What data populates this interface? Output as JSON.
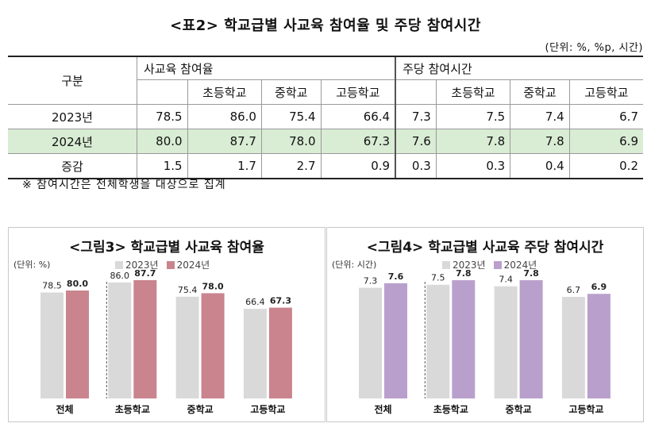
{
  "table": {
    "title": "<표2> 학교급별 사교육 참여율 및 주당 참여시간",
    "unit": "(단위: %, %p, 시간)",
    "gubun": "구분",
    "group_rate": "사교육 참여율",
    "group_hours": "주당 참여시간",
    "sublevels": [
      "초등학교",
      "중학교",
      "고등학교"
    ],
    "rows": [
      {
        "label": "2023년",
        "values": [
          "78.5",
          "86.0",
          "75.4",
          "66.4",
          "7.3",
          "7.5",
          "7.4",
          "6.7"
        ]
      },
      {
        "label": "2024년",
        "values": [
          "80.0",
          "87.7",
          "78.0",
          "67.3",
          "7.6",
          "7.8",
          "7.8",
          "6.9"
        ]
      },
      {
        "label": "증감",
        "values": [
          "1.5",
          "1.7",
          "2.7",
          "0.9",
          "0.3",
          "0.3",
          "0.4",
          "0.2"
        ]
      }
    ],
    "note": "※ 참여시간은 전체학생을 대상으로 집계"
  },
  "colors": {
    "bar2023": "#d9d9d9",
    "bar2024_rate": "#c9848e",
    "bar2024_hours": "#b9a0cc",
    "highlight_row": "#d9ecd4",
    "divider": "#9a9a9a"
  },
  "chart_data": [
    {
      "type": "bar",
      "title": "<그림3> 학교급별 사교육 참여율",
      "unit": "(단위: %)",
      "categories": [
        "전체",
        "초등학교",
        "중학교",
        "고등학교"
      ],
      "series": [
        {
          "name": "2023년",
          "values": [
            78.5,
            86.0,
            75.4,
            66.4
          ]
        },
        {
          "name": "2024년",
          "values": [
            80.0,
            87.7,
            78.0,
            67.3
          ]
        }
      ],
      "ylim": [
        0,
        100
      ],
      "grid": false,
      "legend": "top-center"
    },
    {
      "type": "bar",
      "title": "<그림4> 학교급별 사교육 주당 참여시간",
      "unit": "(단위: 시간)",
      "categories": [
        "전체",
        "초등학교",
        "중학교",
        "고등학교"
      ],
      "series": [
        {
          "name": "2023년",
          "values": [
            7.3,
            7.5,
            7.4,
            6.7
          ]
        },
        {
          "name": "2024년",
          "values": [
            7.6,
            7.8,
            7.8,
            6.9
          ]
        }
      ],
      "ylim": [
        0,
        8.9
      ],
      "grid": false,
      "legend": "top-center"
    }
  ]
}
